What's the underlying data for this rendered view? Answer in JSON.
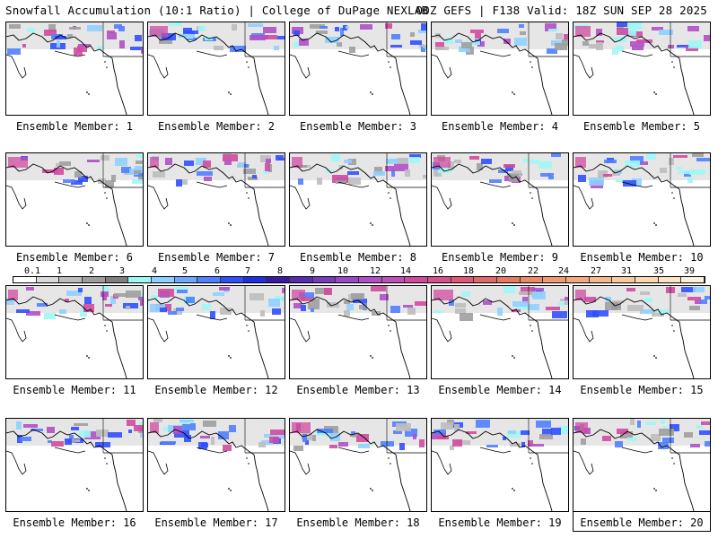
{
  "header": {
    "title_left": "Snowfall Accumulation (10:1 Ratio) | College of DuPage NEXLAB",
    "title_right": "00Z GEFS | F138 Valid: 18Z SUN SEP 28 2025"
  },
  "panel_prefix": "Ensemble Member: ",
  "members": [
    {
      "label": "Ensemble Member: 1"
    },
    {
      "label": "Ensemble Member: 2"
    },
    {
      "label": "Ensemble Member: 3"
    },
    {
      "label": "Ensemble Member: 4"
    },
    {
      "label": "Ensemble Member: 5"
    },
    {
      "label": "Ensemble Member: 6"
    },
    {
      "label": "Ensemble Member: 7"
    },
    {
      "label": "Ensemble Member: 8"
    },
    {
      "label": "Ensemble Member: 9"
    },
    {
      "label": "Ensemble Member: 10"
    },
    {
      "label": "Ensemble Member: 11"
    },
    {
      "label": "Ensemble Member: 12"
    },
    {
      "label": "Ensemble Member: 13"
    },
    {
      "label": "Ensemble Member: 14"
    },
    {
      "label": "Ensemble Member: 15"
    },
    {
      "label": "Ensemble Member: 16"
    },
    {
      "label": "Ensemble Member: 17"
    },
    {
      "label": "Ensemble Member: 18"
    },
    {
      "label": "Ensemble Member: 19"
    },
    {
      "label": "Ensemble Member: 20"
    }
  ],
  "colorbar": {
    "labels": [
      "0.1",
      "1",
      "2",
      "3",
      "4",
      "5",
      "6",
      "7",
      "8",
      "9",
      "10",
      "12",
      "14",
      "16",
      "18",
      "20",
      "22",
      "24",
      "27",
      "31",
      "35",
      "39"
    ],
    "colors": [
      "#ffffff",
      "#d9d9d9",
      "#bdbdbd",
      "#9e9e9e",
      "#7f7f7f",
      "#9ff7f7",
      "#8fd0ff",
      "#6fa8ff",
      "#5080ff",
      "#3050ff",
      "#2030e0",
      "#3a1aa0",
      "#5a2ab0",
      "#7a3ac0",
      "#9a48c8",
      "#b050c8",
      "#c050b8",
      "#d04aa0",
      "#d8508a",
      "#e05a78",
      "#e06a6a",
      "#e67a64",
      "#ec8a6a",
      "#f09a74",
      "#f4aa80",
      "#f6ba90",
      "#f8caa0",
      "#fad8b2",
      "#fce4c4",
      "#fff0dc"
    ]
  }
}
